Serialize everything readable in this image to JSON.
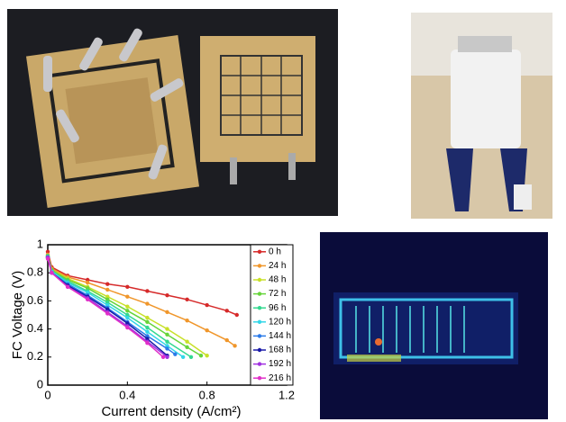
{
  "chart_data": {
    "type": "line",
    "xlabel": "Current density (A/cm²)",
    "ylabel": "FC Voltage (V)",
    "xlim": [
      0,
      1.2
    ],
    "xticks": [
      0,
      0.4,
      0.8,
      1.2
    ],
    "ylim": [
      0,
      1
    ],
    "yticks": [
      0,
      0.2,
      0.4,
      0.6,
      0.8,
      1
    ],
    "legend": "right",
    "series": [
      {
        "name": "0 h",
        "color": "#d62a2a",
        "x": [
          0,
          0.02,
          0.1,
          0.2,
          0.3,
          0.4,
          0.5,
          0.6,
          0.7,
          0.8,
          0.9,
          0.95
        ],
        "values": [
          0.95,
          0.84,
          0.78,
          0.75,
          0.72,
          0.7,
          0.67,
          0.64,
          0.61,
          0.57,
          0.53,
          0.5
        ]
      },
      {
        "name": "24 h",
        "color": "#f0962a",
        "x": [
          0,
          0.02,
          0.1,
          0.2,
          0.3,
          0.4,
          0.5,
          0.6,
          0.7,
          0.8,
          0.9,
          0.94
        ],
        "values": [
          0.93,
          0.83,
          0.77,
          0.73,
          0.68,
          0.63,
          0.58,
          0.52,
          0.46,
          0.39,
          0.32,
          0.28
        ]
      },
      {
        "name": "48 h",
        "color": "#c8e028",
        "x": [
          0,
          0.02,
          0.1,
          0.2,
          0.3,
          0.4,
          0.5,
          0.6,
          0.7,
          0.8
        ],
        "values": [
          0.92,
          0.82,
          0.76,
          0.7,
          0.63,
          0.56,
          0.48,
          0.4,
          0.31,
          0.21
        ]
      },
      {
        "name": "72 h",
        "color": "#66d43a",
        "x": [
          0,
          0.02,
          0.1,
          0.2,
          0.3,
          0.4,
          0.5,
          0.6,
          0.7,
          0.77
        ],
        "values": [
          0.92,
          0.82,
          0.75,
          0.69,
          0.61,
          0.53,
          0.45,
          0.36,
          0.27,
          0.21
        ]
      },
      {
        "name": "96 h",
        "color": "#33d890",
        "x": [
          0,
          0.02,
          0.1,
          0.2,
          0.3,
          0.4,
          0.5,
          0.6,
          0.72
        ],
        "values": [
          0.92,
          0.81,
          0.74,
          0.67,
          0.59,
          0.5,
          0.41,
          0.31,
          0.2
        ]
      },
      {
        "name": "120 h",
        "color": "#33d6e8",
        "x": [
          0,
          0.02,
          0.1,
          0.2,
          0.3,
          0.4,
          0.5,
          0.6,
          0.68
        ],
        "values": [
          0.91,
          0.81,
          0.73,
          0.66,
          0.57,
          0.48,
          0.38,
          0.28,
          0.2
        ]
      },
      {
        "name": "144 h",
        "color": "#2a7ae8",
        "x": [
          0,
          0.02,
          0.1,
          0.2,
          0.3,
          0.4,
          0.5,
          0.6,
          0.64
        ],
        "values": [
          0.91,
          0.8,
          0.72,
          0.64,
          0.55,
          0.45,
          0.35,
          0.26,
          0.22
        ]
      },
      {
        "name": "168 h",
        "color": "#1a1aa8",
        "x": [
          0,
          0.02,
          0.1,
          0.2,
          0.3,
          0.4,
          0.5,
          0.6
        ],
        "values": [
          0.91,
          0.8,
          0.71,
          0.63,
          0.54,
          0.44,
          0.33,
          0.21
        ]
      },
      {
        "name": "192 h",
        "color": "#a030e0",
        "x": [
          0,
          0.02,
          0.1,
          0.2,
          0.3,
          0.4,
          0.5,
          0.6
        ],
        "values": [
          0.91,
          0.8,
          0.7,
          0.62,
          0.52,
          0.42,
          0.31,
          0.2
        ]
      },
      {
        "name": "216 h",
        "color": "#e030c8",
        "x": [
          0,
          0.02,
          0.1,
          0.2,
          0.3,
          0.4,
          0.5,
          0.58
        ],
        "values": [
          0.9,
          0.8,
          0.7,
          0.61,
          0.51,
          0.41,
          0.3,
          0.2
        ]
      }
    ]
  }
}
